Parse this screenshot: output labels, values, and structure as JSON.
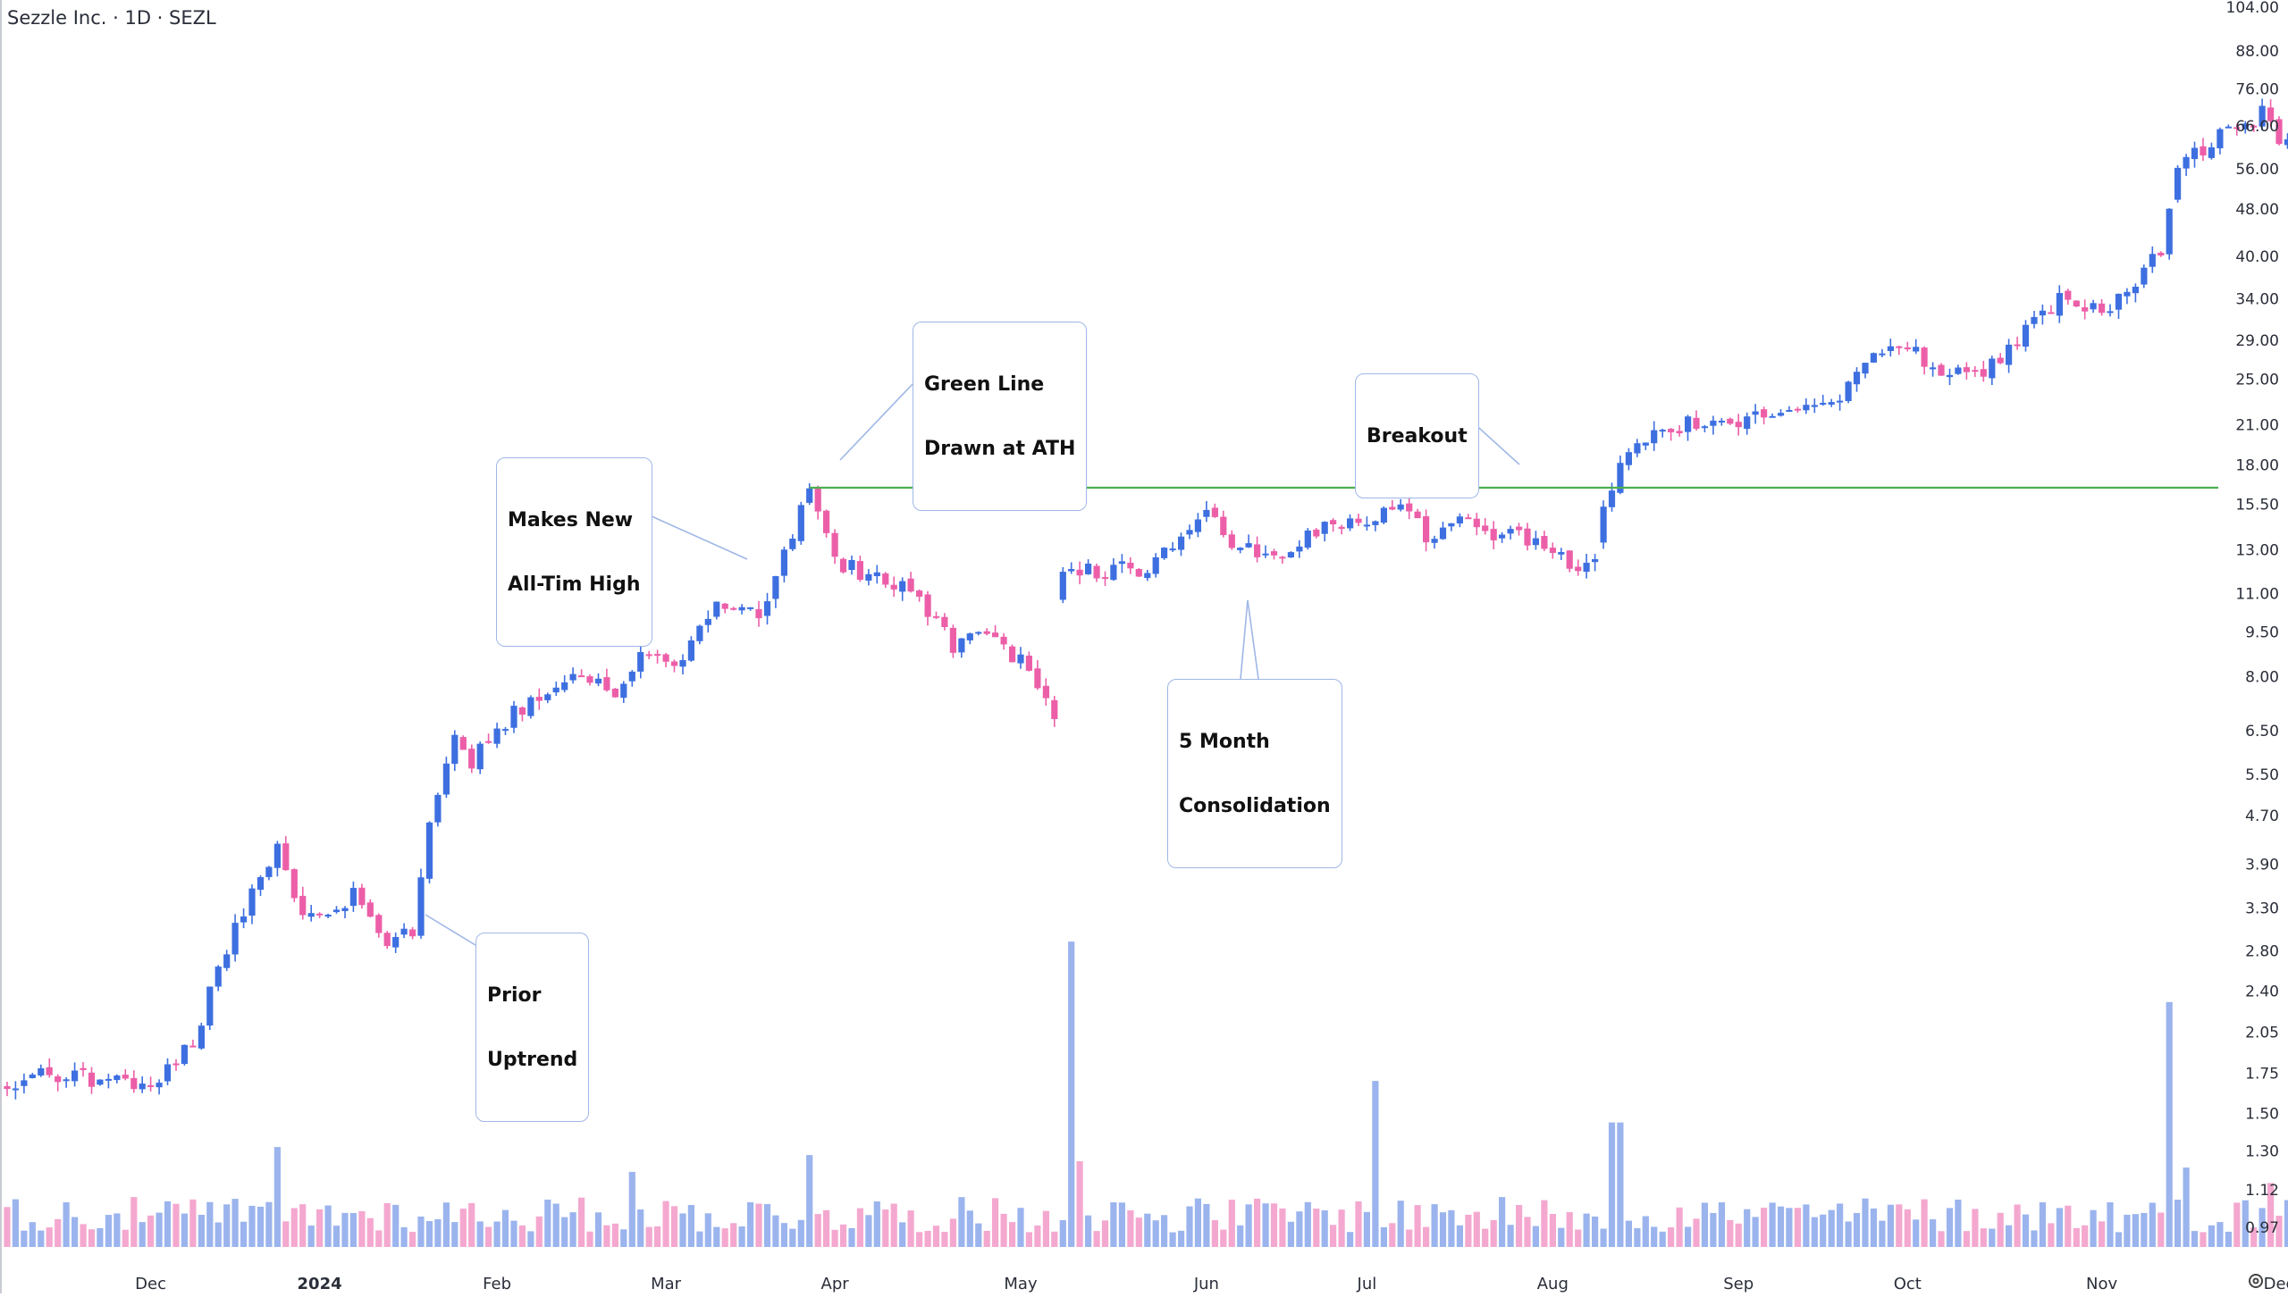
{
  "header": {
    "title": "Sezzle Inc. · 1D · SEZL"
  },
  "annotations": {
    "green_line": {
      "label_1": "Green Line",
      "label_2": "Drawn at ATH"
    },
    "new_ath": {
      "label_1": "Makes New",
      "label_2": "All-Tim High"
    },
    "breakout": {
      "label_1": "Breakout"
    },
    "consolidation": {
      "label_1": "5 Month",
      "label_2": "Consolidation"
    },
    "prior_uptrend": {
      "label_1": "Prior",
      "label_2": "Uptrend"
    }
  },
  "colors": {
    "up": "#3d6fe0",
    "down": "#ec5fa8",
    "vol_up": "#9bb4ee",
    "vol_down": "#f4a8cf",
    "ath_line": "#4caf50",
    "callout_border": "#9fb7e6"
  },
  "icons": {
    "settings": "gear-icon"
  },
  "chart_data": {
    "type": "candlestick",
    "title": "Sezzle Inc. · 1D · SEZL",
    "y_scale": "log",
    "ylim": [
      0.9,
      104.0
    ],
    "y_ticks": [
      "104.00",
      "88.00",
      "76.00",
      "66.00",
      "56.00",
      "48.00",
      "40.00",
      "34.00",
      "29.00",
      "25.00",
      "21.00",
      "18.00",
      "15.50",
      "13.00",
      "11.00",
      "9.50",
      "8.00",
      "6.50",
      "5.50",
      "4.70",
      "3.90",
      "3.30",
      "2.80",
      "2.40",
      "2.05",
      "1.75",
      "1.50",
      "1.30",
      "1.12",
      "0.97"
    ],
    "x_ticks": [
      {
        "label": "Dec",
        "index": 17
      },
      {
        "label": "2024",
        "index": 37
      },
      {
        "label": "Feb",
        "index": 58
      },
      {
        "label": "Mar",
        "index": 78
      },
      {
        "label": "Apr",
        "index": 98
      },
      {
        "label": "May",
        "index": 120
      },
      {
        "label": "Jun",
        "index": 142
      },
      {
        "label": "Jul",
        "index": 161
      },
      {
        "label": "Aug",
        "index": 183
      },
      {
        "label": "Sep",
        "index": 205
      },
      {
        "label": "Oct",
        "index": 225
      },
      {
        "label": "Nov",
        "index": 248
      },
      {
        "label": "Dec",
        "index": 269
      }
    ],
    "ath_level": 16.5,
    "n_candles": 272,
    "price_keyframes": [
      [
        0,
        1.65
      ],
      [
        4,
        1.75
      ],
      [
        8,
        1.72
      ],
      [
        14,
        1.68
      ],
      [
        18,
        1.72
      ],
      [
        22,
        2.0
      ],
      [
        28,
        3.3
      ],
      [
        32,
        4.2
      ],
      [
        35,
        3.2
      ],
      [
        41,
        3.45
      ],
      [
        45,
        2.85
      ],
      [
        48,
        3.05
      ],
      [
        50,
        4.6
      ],
      [
        53,
        6.2
      ],
      [
        55,
        5.8
      ],
      [
        60,
        7.0
      ],
      [
        63,
        7.5
      ],
      [
        68,
        8.2
      ],
      [
        72,
        7.2
      ],
      [
        76,
        9.0
      ],
      [
        80,
        8.5
      ],
      [
        84,
        10.6
      ],
      [
        89,
        10.0
      ],
      [
        95,
        16.2
      ],
      [
        98,
        12.5
      ],
      [
        104,
        11.5
      ],
      [
        108,
        10.8
      ],
      [
        112,
        9.0
      ],
      [
        116,
        9.6
      ],
      [
        120,
        8.5
      ],
      [
        124,
        7.0
      ],
      [
        125,
        12.2
      ],
      [
        130,
        12.0
      ],
      [
        135,
        12.2
      ],
      [
        142,
        15.0
      ],
      [
        146,
        13.0
      ],
      [
        150,
        12.6
      ],
      [
        155,
        14.0
      ],
      [
        160,
        14.3
      ],
      [
        165,
        15.2
      ],
      [
        168,
        13.8
      ],
      [
        172,
        14.5
      ],
      [
        177,
        13.8
      ],
      [
        182,
        13.5
      ],
      [
        186,
        11.6
      ],
      [
        188,
        12.4
      ],
      [
        189,
        15.2
      ],
      [
        192,
        19.5
      ],
      [
        196,
        20.8
      ],
      [
        200,
        21.0
      ],
      [
        205,
        21.2
      ],
      [
        212,
        21.8
      ],
      [
        216,
        22.8
      ],
      [
        220,
        27.0
      ],
      [
        224,
        29.0
      ],
      [
        228,
        26.5
      ],
      [
        232,
        25.0
      ],
      [
        236,
        27.0
      ],
      [
        240,
        32.0
      ],
      [
        244,
        34.5
      ],
      [
        248,
        32.5
      ],
      [
        251,
        35.0
      ],
      [
        255,
        40.5
      ],
      [
        257,
        56.5
      ],
      [
        262,
        64.0
      ],
      [
        267,
        69.0
      ],
      [
        270,
        61.0
      ],
      [
        271,
        60.0
      ]
    ],
    "volume_spikes": {
      "32": 1.32,
      "74": 1.2,
      "95": 1.28,
      "126": 2.9,
      "127": 1.25,
      "162": 1.7,
      "190": 1.45,
      "191": 1.45,
      "256": 2.3,
      "258": 1.22,
      "268": 1.15
    }
  }
}
